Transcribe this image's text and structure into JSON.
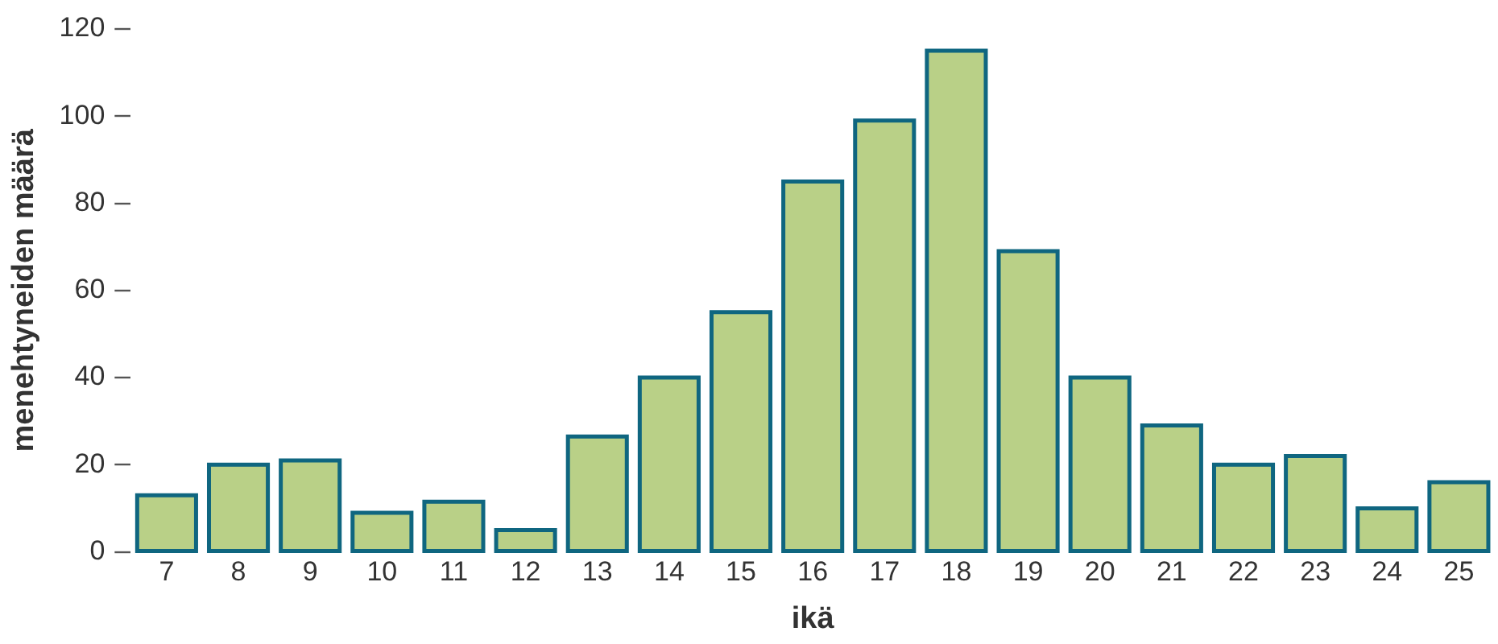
{
  "chart_data": {
    "type": "bar",
    "xlabel": "ikä",
    "ylabel": "menehtyneiden määrä",
    "categories": [
      "7",
      "8",
      "9",
      "10",
      "11",
      "12",
      "13",
      "14",
      "15",
      "16",
      "17",
      "18",
      "19",
      "20",
      "21",
      "22",
      "23",
      "24",
      "25"
    ],
    "values": [
      13,
      20,
      21,
      9,
      11.5,
      5,
      26.5,
      40,
      55,
      85,
      99,
      115,
      69,
      40,
      29,
      20,
      22,
      10,
      16
    ],
    "color": "#b9d087",
    "ylim": [
      0,
      120
    ],
    "yticks": [
      0,
      20,
      40,
      60,
      80,
      100,
      120
    ],
    "grid": false,
    "legend": false
  }
}
